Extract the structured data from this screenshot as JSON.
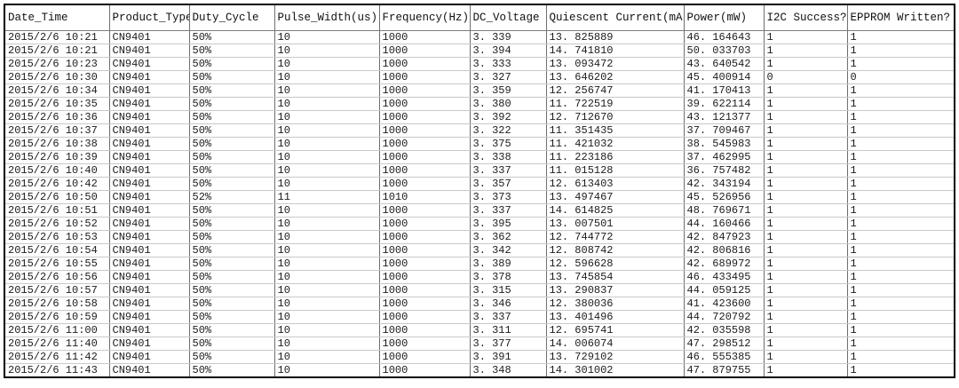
{
  "chart_data": {
    "type": "table",
    "title": "",
    "columns": [
      "Date_Time",
      "Product_Type",
      "Duty_Cycle",
      "Pulse_Width(us)",
      "Frequency(Hz)",
      "DC_Voltage",
      "Quiescent Current(mA)",
      "Power(mW)",
      "I2C Success?",
      "EPPROM Written?"
    ],
    "rows": [
      [
        "2015/2/6 10:21",
        "CN9401",
        "50%",
        "10",
        "1000",
        "3. 339",
        "13. 825889",
        "46. 164643",
        "1",
        "1"
      ],
      [
        "2015/2/6 10:21",
        "CN9401",
        "50%",
        "10",
        "1000",
        "3. 394",
        "14. 741810",
        "50. 033703",
        "1",
        "1"
      ],
      [
        "2015/2/6 10:23",
        "CN9401",
        "50%",
        "10",
        "1000",
        "3. 333",
        "13. 093472",
        "43. 640542",
        "1",
        "1"
      ],
      [
        "2015/2/6 10:30",
        "CN9401",
        "50%",
        "10",
        "1000",
        "3. 327",
        "13. 646202",
        "45. 400914",
        "0",
        "0"
      ],
      [
        "2015/2/6 10:34",
        "CN9401",
        "50%",
        "10",
        "1000",
        "3. 359",
        "12. 256747",
        "41. 170413",
        "1",
        "1"
      ],
      [
        "2015/2/6 10:35",
        "CN9401",
        "50%",
        "10",
        "1000",
        "3. 380",
        "11. 722519",
        "39. 622114",
        "1",
        "1"
      ],
      [
        "2015/2/6 10:36",
        "CN9401",
        "50%",
        "10",
        "1000",
        "3. 392",
        "12. 712670",
        "43. 121377",
        "1",
        "1"
      ],
      [
        "2015/2/6 10:37",
        "CN9401",
        "50%",
        "10",
        "1000",
        "3. 322",
        "11. 351435",
        "37. 709467",
        "1",
        "1"
      ],
      [
        "2015/2/6 10:38",
        "CN9401",
        "50%",
        "10",
        "1000",
        "3. 375",
        "11. 421032",
        "38. 545983",
        "1",
        "1"
      ],
      [
        "2015/2/6 10:39",
        "CN9401",
        "50%",
        "10",
        "1000",
        "3. 338",
        "11. 223186",
        "37. 462995",
        "1",
        "1"
      ],
      [
        "2015/2/6 10:40",
        "CN9401",
        "50%",
        "10",
        "1000",
        "3. 337",
        "11. 015128",
        "36. 757482",
        "1",
        "1"
      ],
      [
        "2015/2/6 10:42",
        "CN9401",
        "50%",
        "10",
        "1000",
        "3. 357",
        "12. 613403",
        "42. 343194",
        "1",
        "1"
      ],
      [
        "2015/2/6 10:50",
        "CN9401",
        "52%",
        "11",
        "1010",
        "3. 373",
        "13. 497467",
        "45. 526956",
        "1",
        "1"
      ],
      [
        "2015/2/6 10:51",
        "CN9401",
        "50%",
        "10",
        "1000",
        "3. 337",
        "14. 614825",
        "48. 769671",
        "1",
        "1"
      ],
      [
        "2015/2/6 10:52",
        "CN9401",
        "50%",
        "10",
        "1000",
        "3. 395",
        "13. 007501",
        "44. 160466",
        "1",
        "1"
      ],
      [
        "2015/2/6 10:53",
        "CN9401",
        "50%",
        "10",
        "1000",
        "3. 362",
        "12. 744772",
        "42. 847923",
        "1",
        "1"
      ],
      [
        "2015/2/6 10:54",
        "CN9401",
        "50%",
        "10",
        "1000",
        "3. 342",
        "12. 808742",
        "42. 806816",
        "1",
        "1"
      ],
      [
        "2015/2/6 10:55",
        "CN9401",
        "50%",
        "10",
        "1000",
        "3. 389",
        "12. 596628",
        "42. 689972",
        "1",
        "1"
      ],
      [
        "2015/2/6 10:56",
        "CN9401",
        "50%",
        "10",
        "1000",
        "3. 378",
        "13. 745854",
        "46. 433495",
        "1",
        "1"
      ],
      [
        "2015/2/6 10:57",
        "CN9401",
        "50%",
        "10",
        "1000",
        "3. 315",
        "13. 290837",
        "44. 059125",
        "1",
        "1"
      ],
      [
        "2015/2/6 10:58",
        "CN9401",
        "50%",
        "10",
        "1000",
        "3. 346",
        "12. 380036",
        "41. 423600",
        "1",
        "1"
      ],
      [
        "2015/2/6 10:59",
        "CN9401",
        "50%",
        "10",
        "1000",
        "3. 337",
        "13. 401496",
        "44. 720792",
        "1",
        "1"
      ],
      [
        "2015/2/6 11:00",
        "CN9401",
        "50%",
        "10",
        "1000",
        "3. 311",
        "12. 695741",
        "42. 035598",
        "1",
        "1"
      ],
      [
        "2015/2/6 11:40",
        "CN9401",
        "50%",
        "10",
        "1000",
        "3. 377",
        "14. 006074",
        "47. 298512",
        "1",
        "1"
      ],
      [
        "2015/2/6 11:42",
        "CN9401",
        "50%",
        "10",
        "1000",
        "3. 391",
        "13. 729102",
        "46. 555385",
        "1",
        "1"
      ],
      [
        "2015/2/6 11:43",
        "CN9401",
        "50%",
        "10",
        "1000",
        "3. 348",
        "14. 301002",
        "47. 879755",
        "1",
        "1"
      ]
    ],
    "layout": {
      "grid": "on",
      "outer_border_color": "#000000",
      "column_line_color": "#6e6e6e",
      "row_line_color": "#c9c9c9",
      "background_color": "#ffffff",
      "text_color": "#1c1c1c"
    }
  }
}
